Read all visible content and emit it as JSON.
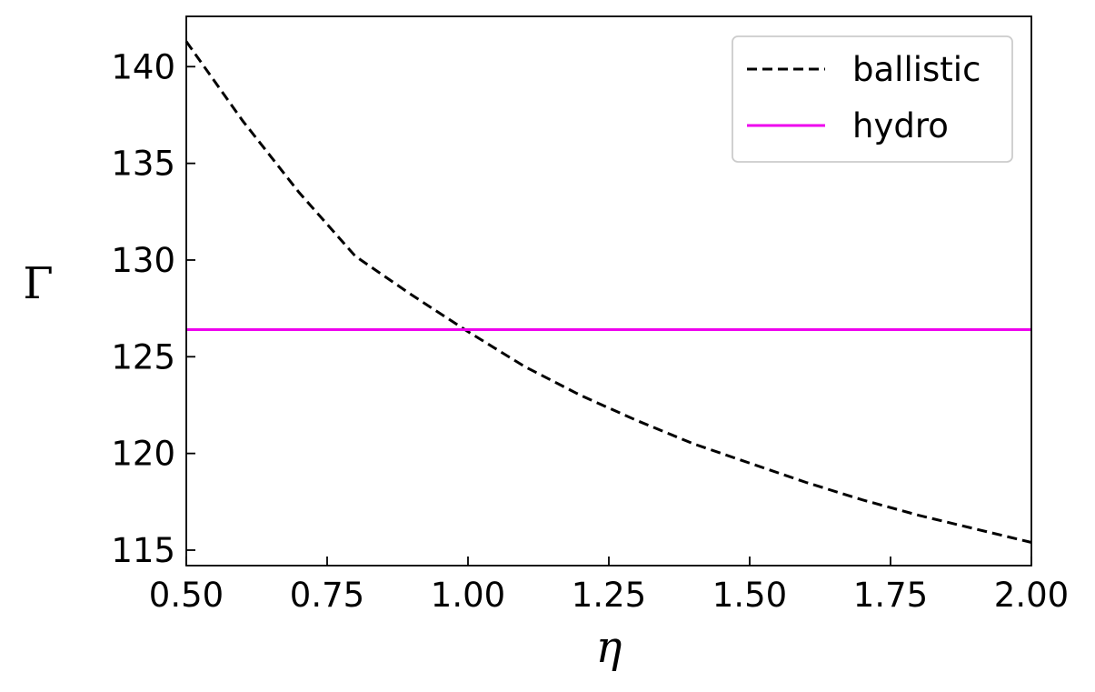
{
  "chart_data": {
    "type": "line",
    "xlabel": "η",
    "ylabel": "Γ",
    "xlim": [
      0.5,
      2.0
    ],
    "ylim": [
      114.2,
      142.6
    ],
    "x_ticks": [
      "0.50",
      "0.75",
      "1.00",
      "1.25",
      "1.50",
      "1.75",
      "2.00"
    ],
    "y_ticks": [
      "115",
      "120",
      "125",
      "130",
      "135",
      "140"
    ],
    "grid": false,
    "legend_position": "top-right",
    "series": [
      {
        "name": "ballistic",
        "style": "dashed",
        "color": "#000000",
        "x": [
          0.5,
          0.6,
          0.7,
          0.8,
          0.9,
          1.0,
          1.1,
          1.2,
          1.3,
          1.4,
          1.5,
          1.6,
          1.7,
          1.8,
          1.9,
          2.0
        ],
        "y": [
          141.3,
          137.2,
          133.5,
          130.2,
          128.2,
          126.3,
          124.5,
          123.0,
          121.7,
          120.5,
          119.5,
          118.5,
          117.6,
          116.8,
          116.1,
          115.4
        ]
      },
      {
        "name": "hydro",
        "style": "solid",
        "color": "#ee00ee",
        "x": [
          0.5,
          2.0
        ],
        "y": [
          126.4,
          126.4
        ]
      }
    ]
  }
}
